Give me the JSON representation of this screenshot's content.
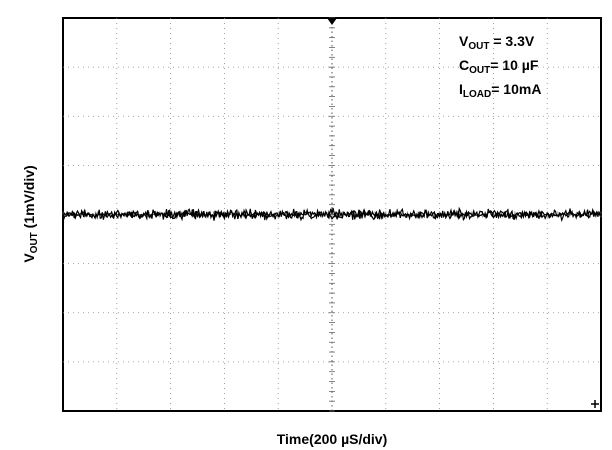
{
  "chart_data": {
    "type": "line",
    "xlabel": "Time(200 µS/div)",
    "ylabel": {
      "main": "V",
      "sub": "OUT",
      "rest": " (1mV/div)"
    },
    "divisions": {
      "x": 10,
      "y": 8
    },
    "trace": {
      "center_div": 4.0,
      "noise_div": 0.14,
      "samples": 520,
      "color": "#000000"
    },
    "grid": true,
    "annotations": [
      {
        "main": "V",
        "sub": "OUT",
        "rest": " = 3.3V"
      },
      {
        "main": "C",
        "sub": "OUT",
        "rest": "= 10 µF"
      },
      {
        "main": "I",
        "sub": "LOAD",
        "rest": "= 10mA"
      }
    ]
  }
}
